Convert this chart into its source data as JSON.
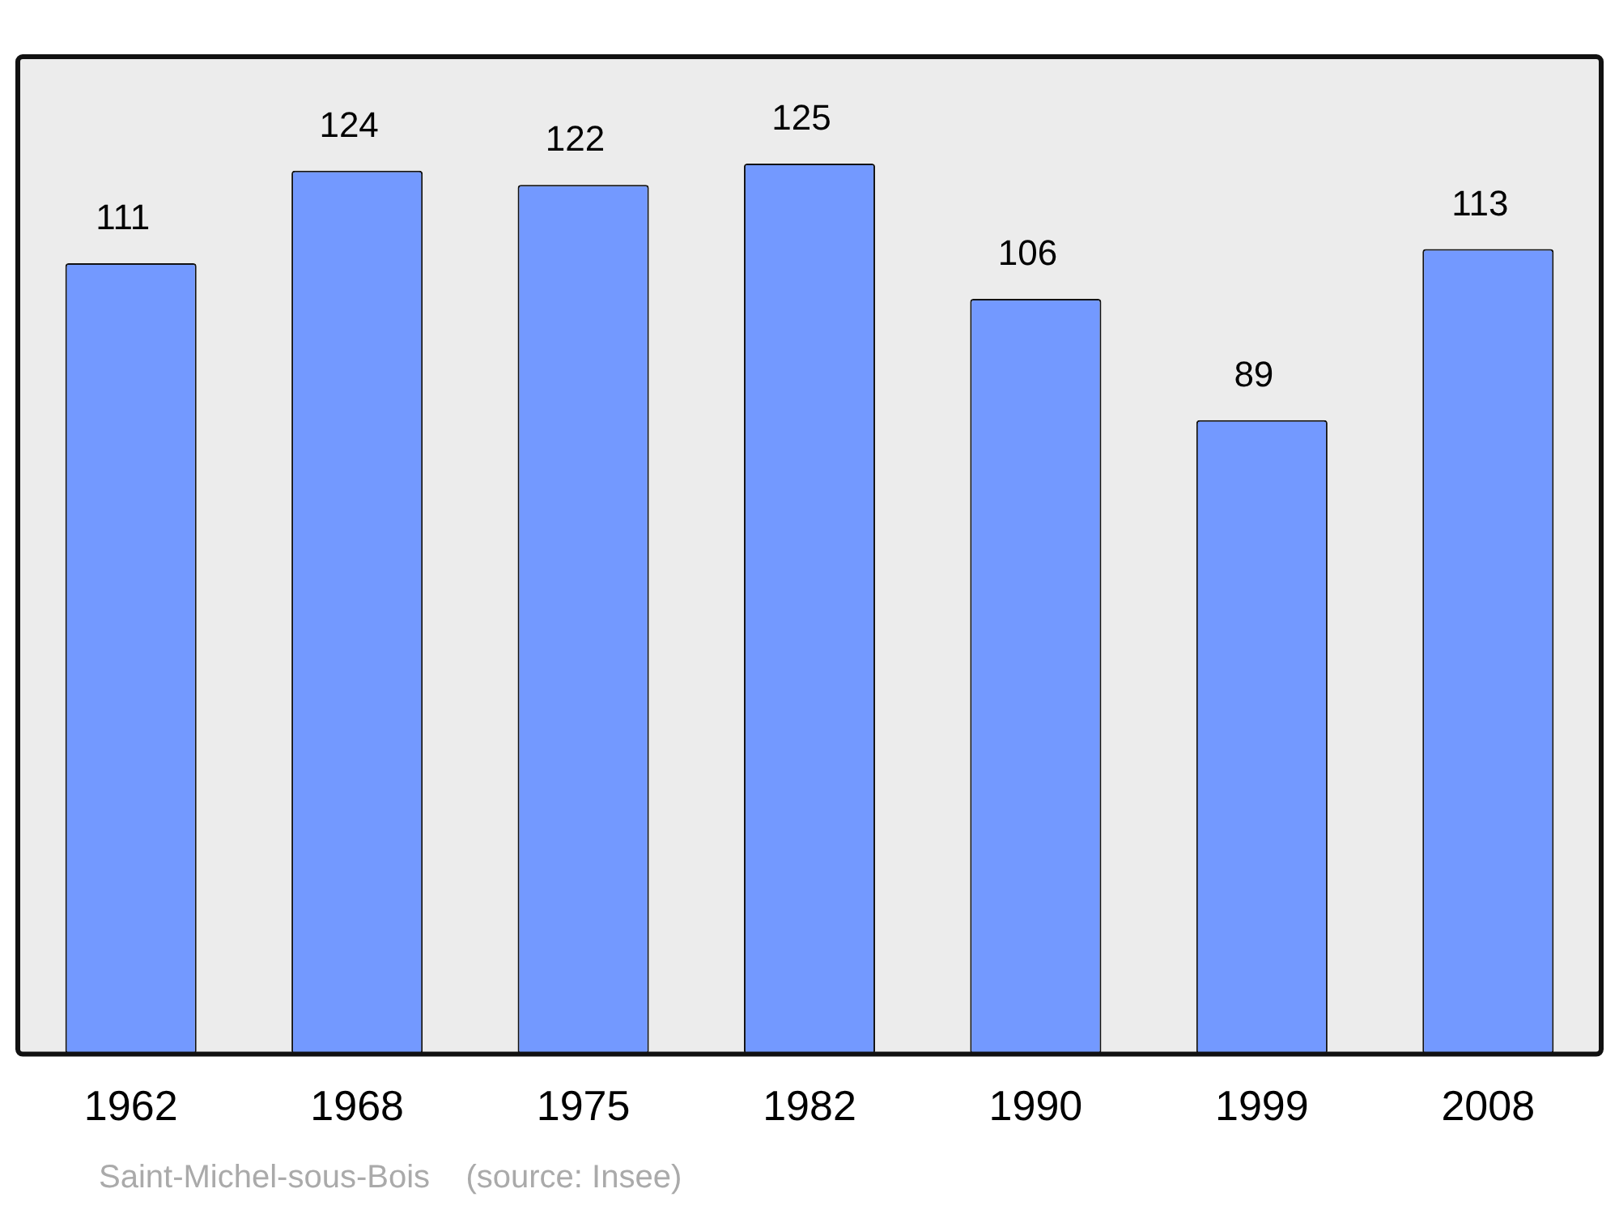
{
  "chart_data": {
    "type": "bar",
    "categories": [
      "1962",
      "1968",
      "1975",
      "1982",
      "1990",
      "1999",
      "2008"
    ],
    "values": [
      111,
      124,
      122,
      125,
      106,
      89,
      113
    ],
    "color": "#7399ff",
    "data_labels": true,
    "grid": false,
    "legend": false,
    "annotations": [
      "Saint-Michel-sous-Bois    (source: Insee)"
    ]
  }
}
